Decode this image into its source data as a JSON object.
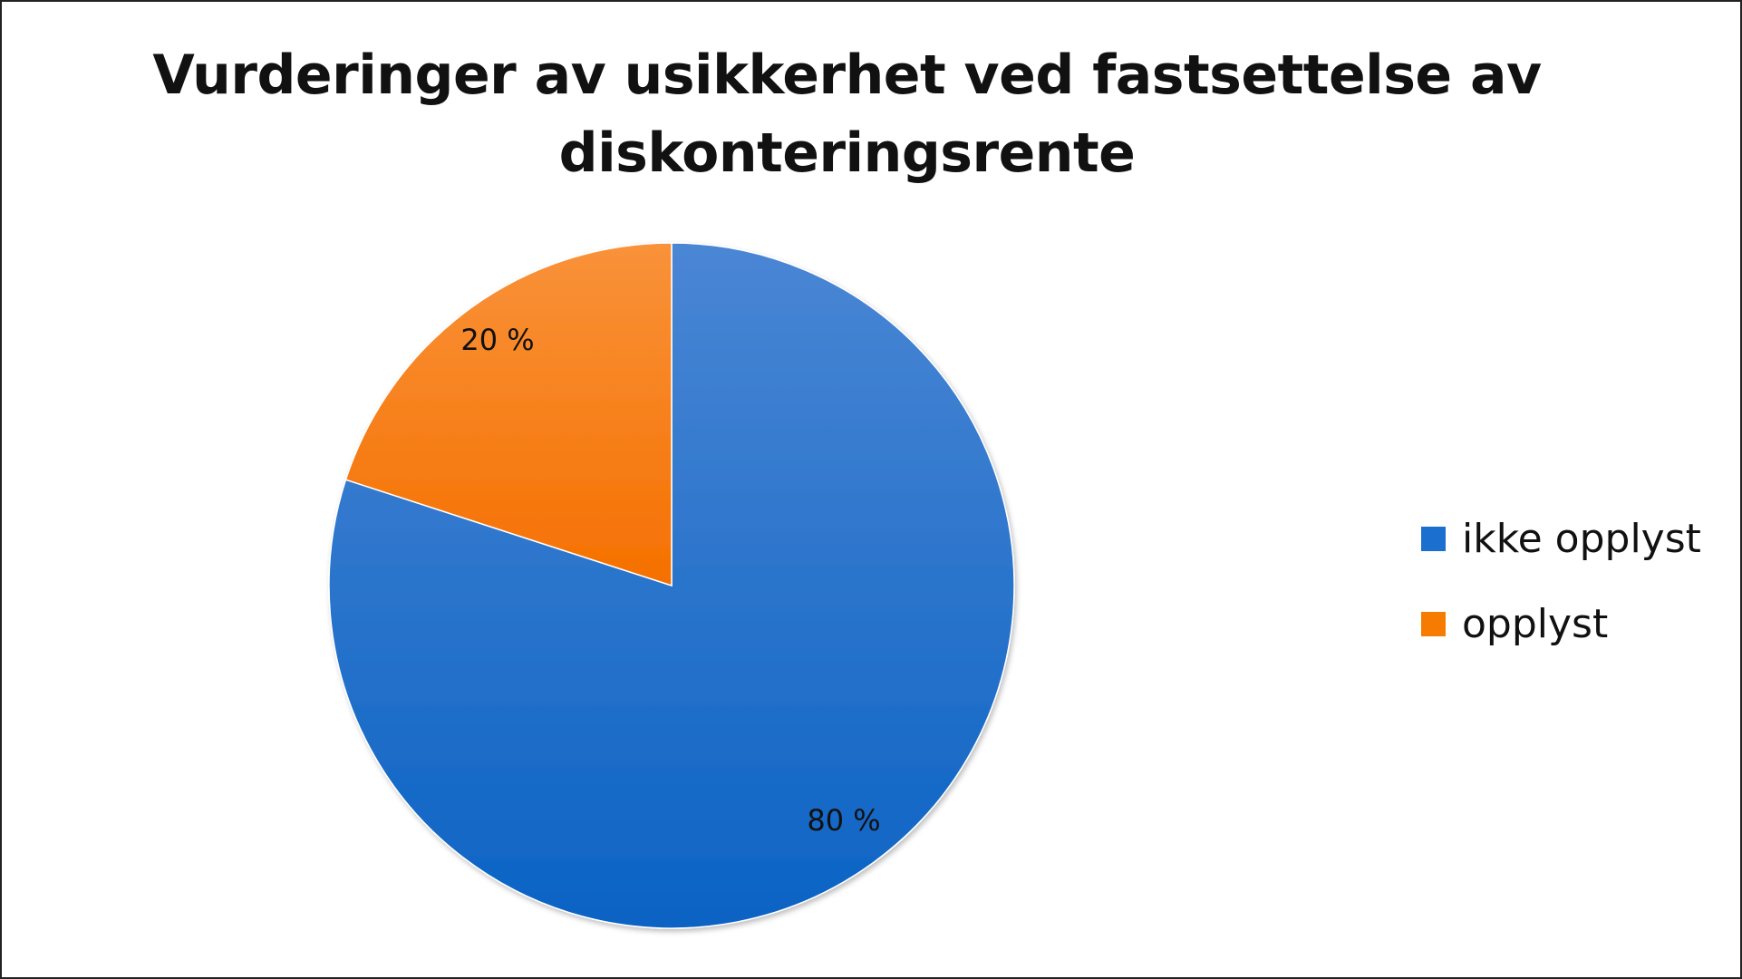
{
  "chart_data": {
    "type": "pie",
    "title_lines": [
      "Vurderinger av usikkerhet ved fastsettelse av",
      "diskonteringsrente"
    ],
    "slices": [
      {
        "label": "ikke opplyst",
        "value": 80,
        "value_label": "80 %",
        "color": "#1565C0"
      },
      {
        "label": "opplyst",
        "value": 20,
        "value_label": "20 %",
        "color": "#F57C00"
      }
    ],
    "legend_position": "right",
    "start_angle_deg": 0,
    "direction": "clockwise"
  },
  "colors": {
    "ikke_opplyst_light": "#4A86D4",
    "ikke_opplyst_dark": "#0B63C4",
    "opplyst_light": "#F9923A",
    "opplyst_dark": "#F57000"
  }
}
